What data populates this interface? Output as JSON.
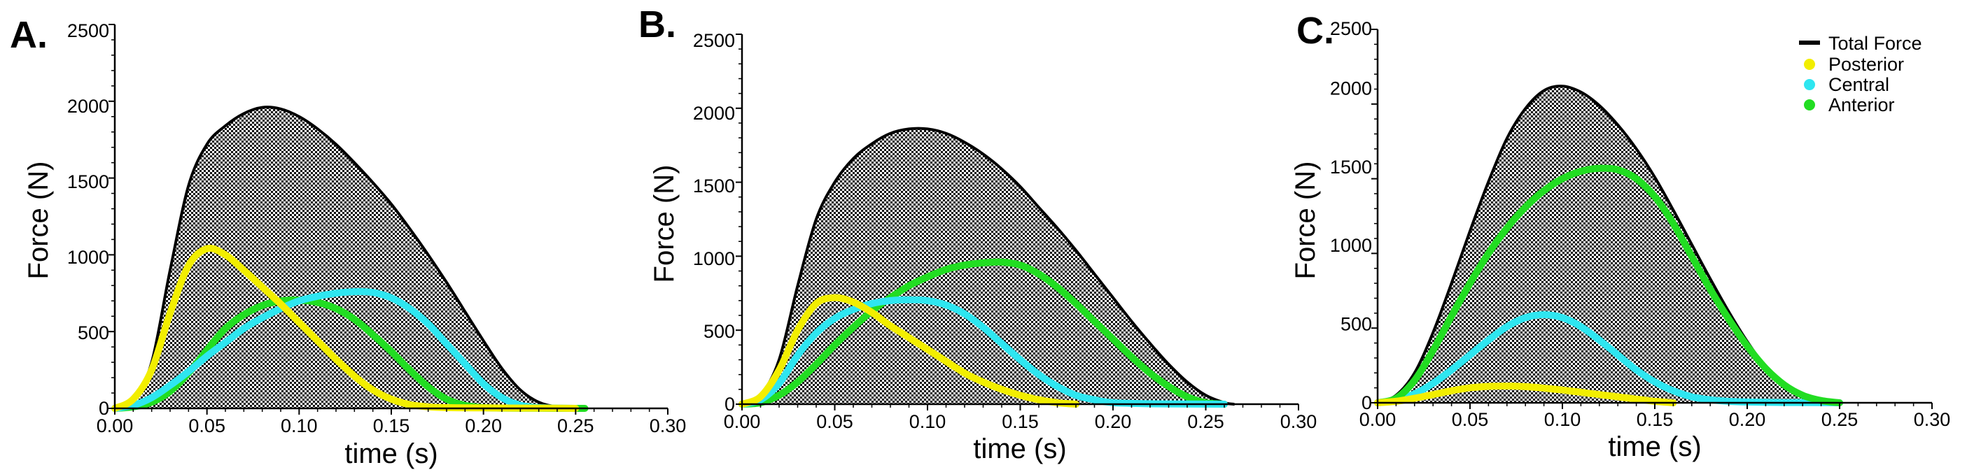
{
  "chart_data": [
    {
      "type": "area",
      "panel_label": "A.",
      "xlabel": "time (s)",
      "ylabel": "Force (N)",
      "xlim": [
        0,
        0.3
      ],
      "ylim": [
        0,
        2500
      ],
      "xticks": [
        "0.00",
        "0.05",
        "0.10",
        "0.15",
        "0.20",
        "0.25",
        "0.30"
      ],
      "yticks": [
        "0",
        "500",
        "1000",
        "1500",
        "2000",
        "2500"
      ],
      "series": [
        {
          "name": "Total Force",
          "style": "filled-pattern",
          "x": [
            0,
            0.01,
            0.02,
            0.03,
            0.04,
            0.05,
            0.06,
            0.07,
            0.08,
            0.09,
            0.1,
            0.11,
            0.12,
            0.13,
            0.14,
            0.15,
            0.16,
            0.17,
            0.18,
            0.19,
            0.2,
            0.21,
            0.22,
            0.23,
            0.24,
            0.25
          ],
          "y": [
            0,
            50,
            300,
            900,
            1450,
            1720,
            1840,
            1920,
            1960,
            1950,
            1900,
            1820,
            1720,
            1600,
            1470,
            1330,
            1170,
            1000,
            820,
            630,
            440,
            260,
            120,
            40,
            10,
            0
          ]
        },
        {
          "name": "Posterior",
          "x": [
            0,
            0.01,
            0.02,
            0.03,
            0.04,
            0.05,
            0.06,
            0.07,
            0.08,
            0.09,
            0.1,
            0.11,
            0.12,
            0.13,
            0.14,
            0.15,
            0.16,
            0.17,
            0.18,
            0.2,
            0.22,
            0.24,
            0.25
          ],
          "y": [
            0,
            60,
            250,
            620,
            930,
            1040,
            1000,
            900,
            790,
            680,
            560,
            440,
            320,
            210,
            120,
            60,
            25,
            10,
            5,
            3,
            2,
            1,
            0
          ]
        },
        {
          "name": "Central",
          "x": [
            0,
            0.01,
            0.02,
            0.03,
            0.04,
            0.05,
            0.06,
            0.07,
            0.08,
            0.09,
            0.1,
            0.11,
            0.12,
            0.13,
            0.14,
            0.15,
            0.16,
            0.17,
            0.18,
            0.19,
            0.2,
            0.21,
            0.22,
            0.23,
            0.24,
            0.25
          ],
          "y": [
            0,
            20,
            70,
            150,
            240,
            340,
            430,
            520,
            590,
            650,
            700,
            730,
            750,
            760,
            755,
            720,
            650,
            550,
            420,
            290,
            160,
            70,
            20,
            5,
            2,
            0
          ]
        },
        {
          "name": "Anterior",
          "x": [
            0,
            0.01,
            0.02,
            0.03,
            0.04,
            0.05,
            0.06,
            0.07,
            0.08,
            0.09,
            0.1,
            0.11,
            0.12,
            0.13,
            0.14,
            0.15,
            0.16,
            0.17,
            0.18,
            0.19,
            0.2,
            0.21,
            0.22,
            0.23,
            0.24,
            0.25,
            0.255
          ],
          "y": [
            0,
            10,
            40,
            110,
            230,
            380,
            520,
            610,
            670,
            700,
            705,
            690,
            650,
            580,
            480,
            370,
            250,
            140,
            60,
            20,
            5,
            2,
            1,
            1,
            0,
            0,
            0
          ]
        }
      ]
    },
    {
      "type": "area",
      "panel_label": "B.",
      "xlabel": "time (s)",
      "ylabel": "Force (N)",
      "xlim": [
        0,
        0.3
      ],
      "ylim": [
        0,
        2500
      ],
      "xticks": [
        "0.00",
        "0.05",
        "0.10",
        "0.15",
        "0.20",
        "0.25",
        "0.30"
      ],
      "yticks": [
        "0",
        "500",
        "1000",
        "1500",
        "2000",
        "2500"
      ],
      "series": [
        {
          "name": "Total Force",
          "style": "filled-pattern",
          "x": [
            0,
            0.01,
            0.02,
            0.03,
            0.04,
            0.05,
            0.06,
            0.07,
            0.08,
            0.09,
            0.1,
            0.11,
            0.12,
            0.13,
            0.14,
            0.15,
            0.16,
            0.17,
            0.18,
            0.19,
            0.2,
            0.21,
            0.22,
            0.23,
            0.24,
            0.25,
            0.26,
            0.265
          ],
          "y": [
            0,
            60,
            300,
            800,
            1250,
            1500,
            1660,
            1760,
            1830,
            1860,
            1860,
            1830,
            1770,
            1690,
            1590,
            1470,
            1330,
            1190,
            1040,
            880,
            720,
            560,
            410,
            270,
            150,
            60,
            10,
            0
          ]
        },
        {
          "name": "Posterior",
          "x": [
            0,
            0.01,
            0.02,
            0.03,
            0.04,
            0.05,
            0.06,
            0.07,
            0.08,
            0.09,
            0.1,
            0.11,
            0.12,
            0.13,
            0.14,
            0.15,
            0.16,
            0.17,
            0.18
          ],
          "y": [
            0,
            50,
            230,
            500,
            680,
            720,
            690,
            620,
            530,
            450,
            370,
            290,
            210,
            150,
            100,
            60,
            30,
            10,
            0
          ]
        },
        {
          "name": "Central",
          "x": [
            0,
            0.01,
            0.02,
            0.03,
            0.04,
            0.05,
            0.06,
            0.07,
            0.08,
            0.09,
            0.1,
            0.11,
            0.12,
            0.13,
            0.14,
            0.15,
            0.16,
            0.17,
            0.18,
            0.19,
            0.2,
            0.22,
            0.24,
            0.26
          ],
          "y": [
            0,
            30,
            140,
            330,
            480,
            580,
            640,
            680,
            700,
            705,
            700,
            670,
            610,
            520,
            410,
            300,
            200,
            120,
            60,
            30,
            10,
            3,
            1,
            0
          ]
        },
        {
          "name": "Anterior",
          "x": [
            0,
            0.01,
            0.02,
            0.03,
            0.04,
            0.05,
            0.06,
            0.07,
            0.08,
            0.09,
            0.1,
            0.11,
            0.12,
            0.13,
            0.14,
            0.15,
            0.16,
            0.17,
            0.18,
            0.19,
            0.2,
            0.21,
            0.22,
            0.23,
            0.24,
            0.25,
            0.26
          ],
          "y": [
            0,
            10,
            60,
            150,
            270,
            400,
            520,
            630,
            720,
            800,
            860,
            910,
            940,
            955,
            960,
            940,
            880,
            790,
            680,
            560,
            440,
            320,
            210,
            120,
            50,
            10,
            0
          ]
        }
      ]
    },
    {
      "type": "area",
      "panel_label": "C.",
      "xlabel": "time (s)",
      "ylabel": "Force (N)",
      "xlim": [
        0,
        0.3
      ],
      "ylim": [
        0,
        2500
      ],
      "xticks": [
        "0.00",
        "0.05",
        "0.10",
        "0.15",
        "0.20",
        "0.25",
        "0.30"
      ],
      "yticks": [
        "0",
        "500",
        "1000",
        "1500",
        "2000",
        "2500"
      ],
      "legend": {
        "position": "top-right",
        "entries": [
          {
            "label": "Total Force",
            "color": "#000000",
            "marker": "line"
          },
          {
            "label": "Posterior",
            "color": "#f2ee00",
            "marker": "dot"
          },
          {
            "label": "Central",
            "color": "#2ee6f0",
            "marker": "dot"
          },
          {
            "label": "Anterior",
            "color": "#22dd22",
            "marker": "dot"
          }
        ]
      },
      "series": [
        {
          "name": "Total Force",
          "style": "filled-pattern",
          "x": [
            0,
            0.01,
            0.02,
            0.03,
            0.04,
            0.05,
            0.06,
            0.07,
            0.08,
            0.09,
            0.1,
            0.11,
            0.12,
            0.13,
            0.14,
            0.15,
            0.16,
            0.17,
            0.18,
            0.19,
            0.2,
            0.21,
            0.22,
            0.23,
            0.24,
            0.25
          ],
          "y": [
            0,
            50,
            200,
            470,
            800,
            1150,
            1480,
            1770,
            1970,
            2090,
            2120,
            2080,
            1990,
            1860,
            1700,
            1510,
            1290,
            1060,
            830,
            610,
            410,
            240,
            110,
            40,
            10,
            0
          ]
        },
        {
          "name": "Posterior",
          "x": [
            0,
            0.01,
            0.02,
            0.03,
            0.04,
            0.05,
            0.06,
            0.07,
            0.08,
            0.09,
            0.1,
            0.11,
            0.12,
            0.13,
            0.14,
            0.15,
            0.16
          ],
          "y": [
            0,
            10,
            30,
            55,
            80,
            100,
            110,
            112,
            108,
            98,
            85,
            70,
            55,
            40,
            25,
            10,
            0
          ]
        },
        {
          "name": "Central",
          "x": [
            0,
            0.01,
            0.02,
            0.03,
            0.04,
            0.05,
            0.06,
            0.07,
            0.08,
            0.09,
            0.1,
            0.11,
            0.12,
            0.13,
            0.14,
            0.15,
            0.16,
            0.17,
            0.18,
            0.19,
            0.2,
            0.22,
            0.24,
            0.25
          ],
          "y": [
            0,
            20,
            60,
            130,
            220,
            320,
            420,
            510,
            570,
            590,
            570,
            510,
            420,
            320,
            220,
            140,
            80,
            40,
            20,
            10,
            5,
            2,
            1,
            0
          ]
        },
        {
          "name": "Anterior",
          "x": [
            0,
            0.01,
            0.02,
            0.03,
            0.04,
            0.05,
            0.06,
            0.07,
            0.08,
            0.09,
            0.1,
            0.11,
            0.12,
            0.13,
            0.14,
            0.15,
            0.16,
            0.17,
            0.18,
            0.19,
            0.2,
            0.21,
            0.22,
            0.23,
            0.24,
            0.25
          ],
          "y": [
            0,
            30,
            150,
            350,
            580,
            800,
            1000,
            1170,
            1310,
            1420,
            1500,
            1550,
            1570,
            1560,
            1500,
            1380,
            1200,
            980,
            760,
            560,
            380,
            230,
            120,
            50,
            15,
            0
          ]
        }
      ]
    }
  ],
  "colors": {
    "total": "#000000",
    "posterior": "#f2ee00",
    "central": "#2ee6f0",
    "anterior": "#22dd22"
  }
}
